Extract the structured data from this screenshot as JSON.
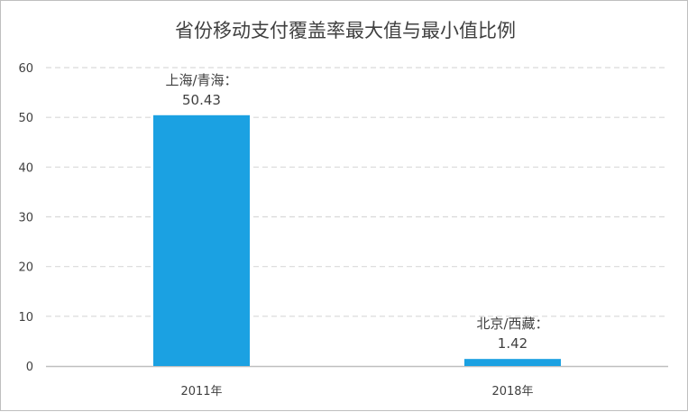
{
  "chart_data": {
    "type": "bar",
    "title": "省份移动支付覆盖率最大值与最小值比例",
    "categories": [
      "2011年",
      "2018年"
    ],
    "values": [
      50.43,
      1.42
    ],
    "data_labels": [
      {
        "name": "上海/青海：",
        "value": "50.43"
      },
      {
        "name": "北京/西藏：",
        "value": "1.42"
      }
    ],
    "xlabel": "",
    "ylabel": "",
    "ylim": [
      0,
      60
    ],
    "yticks": [
      "0",
      "10",
      "20",
      "30",
      "40",
      "50",
      "60"
    ],
    "grid": true,
    "legend": "none",
    "colors": {
      "bar": "#1ba1e2",
      "grid": "#d9d9d9",
      "axis": "#bfbfbf",
      "text": "#404040"
    }
  }
}
